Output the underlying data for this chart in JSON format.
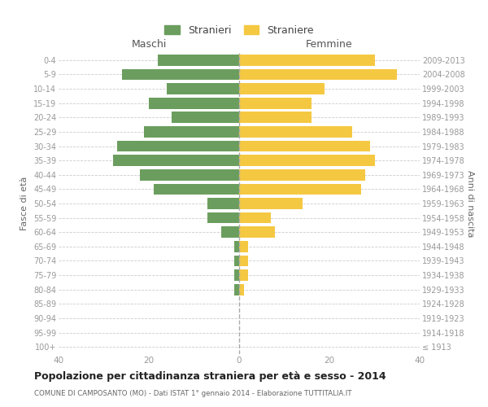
{
  "age_groups": [
    "100+",
    "95-99",
    "90-94",
    "85-89",
    "80-84",
    "75-79",
    "70-74",
    "65-69",
    "60-64",
    "55-59",
    "50-54",
    "45-49",
    "40-44",
    "35-39",
    "30-34",
    "25-29",
    "20-24",
    "15-19",
    "10-14",
    "5-9",
    "0-4"
  ],
  "birth_years": [
    "≤ 1913",
    "1914-1918",
    "1919-1923",
    "1924-1928",
    "1929-1933",
    "1934-1938",
    "1939-1943",
    "1944-1948",
    "1949-1953",
    "1954-1958",
    "1959-1963",
    "1964-1968",
    "1969-1973",
    "1974-1978",
    "1979-1983",
    "1984-1988",
    "1989-1993",
    "1994-1998",
    "1999-2003",
    "2004-2008",
    "2009-2013"
  ],
  "maschi": [
    0,
    0,
    0,
    0,
    1,
    1,
    1,
    1,
    4,
    7,
    7,
    19,
    22,
    28,
    27,
    21,
    15,
    20,
    16,
    26,
    18
  ],
  "femmine": [
    0,
    0,
    0,
    0,
    1,
    2,
    2,
    2,
    8,
    7,
    14,
    27,
    28,
    30,
    29,
    25,
    16,
    16,
    19,
    35,
    30
  ],
  "maschi_color": "#6b9e5e",
  "femmine_color": "#f5c842",
  "bg_color": "#ffffff",
  "grid_color": "#cccccc",
  "title": "Popolazione per cittadinanza straniera per età e sesso - 2014",
  "subtitle": "COMUNE DI CAMPOSANTO (MO) - Dati ISTAT 1° gennaio 2014 - Elaborazione TUTTITALIA.IT",
  "ylabel_left": "Fasce di età",
  "ylabel_right": "Anni di nascita",
  "legend_maschi": "Stranieri",
  "legend_femmine": "Straniere",
  "xlim": 40,
  "xticks": [
    -40,
    -20,
    0,
    20,
    40
  ],
  "xticklabels": [
    "40",
    "20",
    "0",
    "20",
    "40"
  ]
}
